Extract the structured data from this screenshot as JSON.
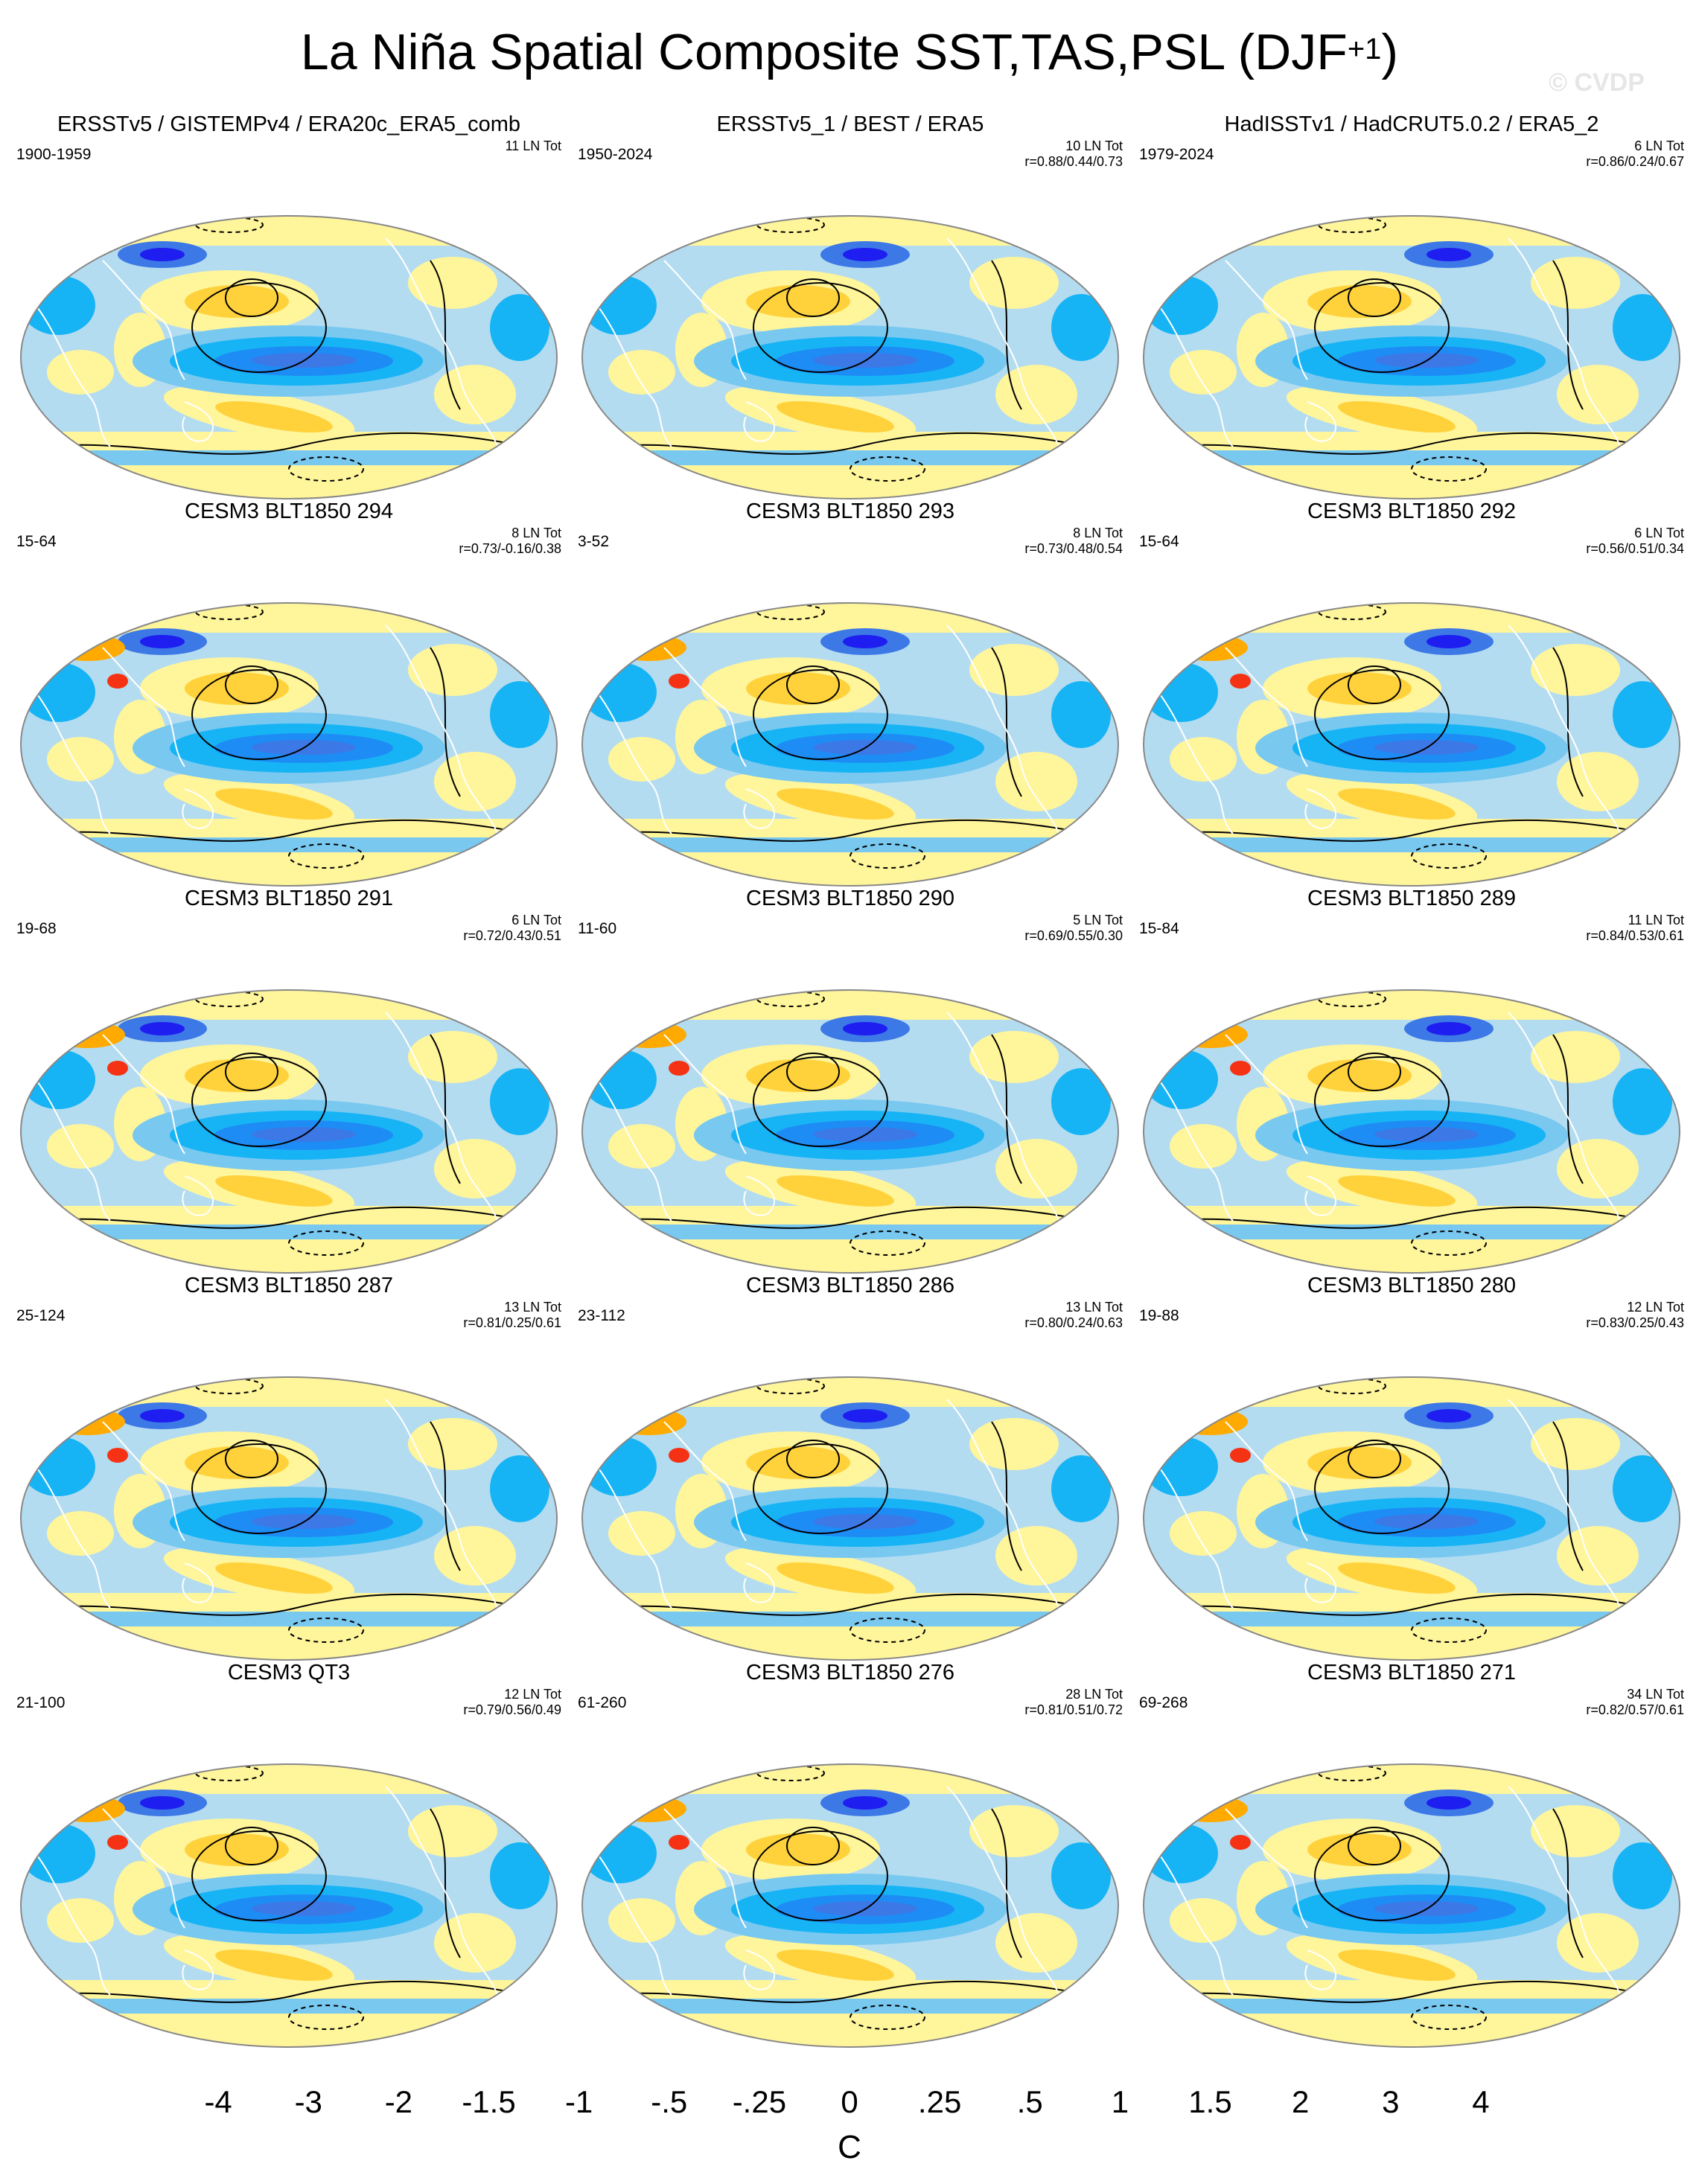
{
  "title_main": "La Niña Spatial Composite SST,TAS,PSL (DJF",
  "title_sup": "+1",
  "title_close": ")",
  "watermark": "© CVDP",
  "panels": [
    {
      "title": "ERSSTv5 / GISTEMPv4 / ERA20c_ERA5_comb",
      "years": "1900-1959",
      "count": "11 LN Tot",
      "r": ""
    },
    {
      "title": "ERSSTv5_1 / BEST / ERA5",
      "years": "1950-2024",
      "count": "10 LN Tot",
      "r": "r=0.88/0.44/0.73"
    },
    {
      "title": "HadISSTv1 / HadCRUT5.0.2 / ERA5_2",
      "years": "1979-2024",
      "count": "6 LN Tot",
      "r": "r=0.86/0.24/0.67"
    },
    {
      "title": "CESM3 BLT1850 294",
      "years": "15-64",
      "count": "8 LN Tot",
      "r": "r=0.73/-0.16/0.38"
    },
    {
      "title": "CESM3 BLT1850 293",
      "years": "3-52",
      "count": "8 LN Tot",
      "r": "r=0.73/0.48/0.54"
    },
    {
      "title": "CESM3 BLT1850 292",
      "years": "15-64",
      "count": "6 LN Tot",
      "r": "r=0.56/0.51/0.34"
    },
    {
      "title": "CESM3 BLT1850 291",
      "years": "19-68",
      "count": "6 LN Tot",
      "r": "r=0.72/0.43/0.51"
    },
    {
      "title": "CESM3 BLT1850 290",
      "years": "11-60",
      "count": "5 LN Tot",
      "r": "r=0.69/0.55/0.30"
    },
    {
      "title": "CESM3 BLT1850 289",
      "years": "15-84",
      "count": "11 LN Tot",
      "r": "r=0.84/0.53/0.61"
    },
    {
      "title": "CESM3 BLT1850 287",
      "years": "25-124",
      "count": "13 LN Tot",
      "r": "r=0.81/0.25/0.61"
    },
    {
      "title": "CESM3 BLT1850 286",
      "years": "23-112",
      "count": "13 LN Tot",
      "r": "r=0.80/0.24/0.63"
    },
    {
      "title": "CESM3 BLT1850 280",
      "years": "19-88",
      "count": "12 LN Tot",
      "r": "r=0.83/0.25/0.43"
    },
    {
      "title": "CESM3 QT3",
      "years": "21-100",
      "count": "12 LN Tot",
      "r": "r=0.79/0.56/0.49"
    },
    {
      "title": "CESM3 BLT1850 276",
      "years": "61-260",
      "count": "28 LN Tot",
      "r": "r=0.81/0.51/0.72"
    },
    {
      "title": "CESM3 BLT1850 271",
      "years": "69-268",
      "count": "34 LN Tot",
      "r": "r=0.82/0.57/0.61"
    }
  ],
  "colorbar": {
    "colors": [
      "#8a2be2",
      "#1e1ef0",
      "#2e55dc",
      "#3c78e6",
      "#1e8cf5",
      "#16b4f5",
      "#78c8f0",
      "#b4dcf0",
      "#fff59b",
      "#ffd23c",
      "#ffaa00",
      "#ff7814",
      "#f53214",
      "#e60000",
      "#c81e1e",
      "#ffb4b4"
    ],
    "ticks": [
      "-4",
      "-3",
      "-2",
      "-1.5",
      "-1",
      "-.5",
      "-.25",
      "0",
      ".25",
      ".5",
      "1",
      "1.5",
      "2",
      "3",
      "4"
    ],
    "units": "C"
  },
  "map_colors": {
    "land": "#b4dcf0",
    "land_cool": "#78c8f0",
    "warm": "#fff59b",
    "warm2": "#ffd23c",
    "warm3": "#ffaa00",
    "cold": "#16b4f5",
    "cold2": "#1e8cf5",
    "cold3": "#3c78e6",
    "deep": "#1e1ef0",
    "hot": "#f53214",
    "outline": "#000000"
  }
}
